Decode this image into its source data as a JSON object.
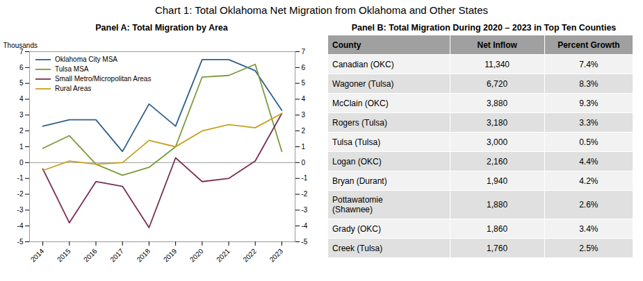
{
  "title": "Chart 1: Total Oklahoma Net Migration from Oklahoma and Other States",
  "chart_data": [
    {
      "type": "line",
      "title": "Panel A: Total Migration by Area",
      "x": [
        2014,
        2015,
        2016,
        2017,
        2018,
        2019,
        2020,
        2021,
        2022,
        2023
      ],
      "series": [
        {
          "name": "Oklahoma City MSA",
          "color": "#2e5f8a",
          "values": [
            2.3,
            2.7,
            2.7,
            0.7,
            3.7,
            2.3,
            6.5,
            6.5,
            5.8,
            3.3
          ]
        },
        {
          "name": "Tulsa MSA",
          "color": "#7a9a3a",
          "values": [
            0.9,
            1.7,
            -0.1,
            -0.8,
            -0.3,
            1.0,
            5.4,
            5.5,
            6.2,
            0.7
          ]
        },
        {
          "name": "Small Metro/Micropolitan Areas",
          "color": "#7b2d55",
          "values": [
            -0.4,
            -3.8,
            -1.2,
            -1.5,
            -4.1,
            0.3,
            -1.2,
            -1.0,
            0.1,
            3.1
          ]
        },
        {
          "name": "Rural Areas",
          "color": "#c8a020",
          "values": [
            -0.5,
            0.1,
            -0.1,
            0.0,
            1.4,
            1.0,
            2.0,
            2.4,
            2.2,
            3.1
          ]
        }
      ],
      "xlim": [
        2013.5,
        2023.5
      ],
      "xticks": [
        2014,
        2015,
        2016,
        2017,
        2018,
        2019,
        2020,
        2021,
        2022,
        2023
      ],
      "ylim": [
        -5,
        7
      ],
      "yticks": [
        -5,
        -4,
        -3,
        -2,
        -1,
        0,
        1,
        2,
        3,
        4,
        5,
        6,
        7
      ],
      "y2lim": [
        -5,
        7
      ],
      "y2ticks": [
        -5,
        -4,
        -3,
        -2,
        -1,
        0,
        1,
        2,
        3,
        4,
        5,
        6,
        7
      ],
      "ylabel": "Thousands",
      "legend": "upper left",
      "grid": false
    },
    {
      "type": "table",
      "title": "Panel B: Total Migration During 2020 – 2023 in Top Ten Counties",
      "columns": [
        "County",
        "Net Inflow",
        "Percent Growth"
      ],
      "rows": [
        [
          "Canadian (OKC)",
          "11,340",
          "7.4%"
        ],
        [
          "Wagoner (Tulsa)",
          "6,720",
          "8.3%"
        ],
        [
          "McClain (OKC)",
          "3,880",
          "9.3%"
        ],
        [
          "Rogers (Tulsa)",
          "3,180",
          "3.3%"
        ],
        [
          "Tulsa (Tulsa)",
          "3,000",
          "0.5%"
        ],
        [
          "Logan (OKC)",
          "2,160",
          "4.4%"
        ],
        [
          "Bryan (Durant)",
          "1,940",
          "4.2%"
        ],
        [
          "Pottawatomie\n(Shawnee)",
          "1,880",
          "2.6%"
        ],
        [
          "Grady (OKC)",
          "1,860",
          "3.4%"
        ],
        [
          "Creek (Tulsa)",
          "1,760",
          "2.5%"
        ]
      ],
      "color": "#a0a0a0",
      "colors": [
        "#f2f2f2",
        "#e0e0e0",
        "#f2f2f2",
        "#e0e0e0",
        "#f2f2f2",
        "#e0e0e0",
        "#f2f2f2",
        "#e0e0e0",
        "#f2f2f2",
        "#e0e0e0"
      ]
    }
  ]
}
